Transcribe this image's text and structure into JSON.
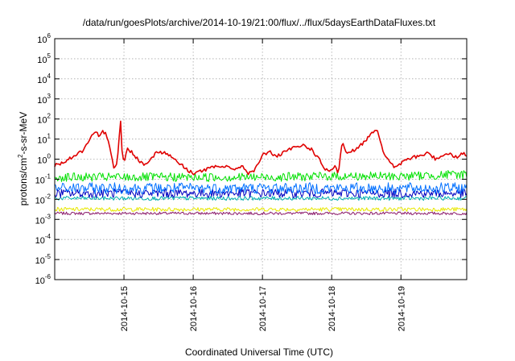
{
  "chart_data": {
    "type": "line",
    "title": "/data/run/goesPlots/archive/2014-10-19/21:00/flux/../flux/5daysEarthDataFluxes.txt",
    "xlabel": "Coordinated Universal Time (UTC)",
    "ylabel_parts": {
      "base": "protons/cm",
      "sup": "2",
      "rest": "-s-sr-MeV"
    },
    "yscale": "log",
    "ylim_exp": [
      -6,
      6
    ],
    "xlim_days": [
      14.0,
      19.95
    ],
    "grid": true,
    "x_ticks": [
      {
        "label": "2014-10-15",
        "day": 15
      },
      {
        "label": "2014-10-16",
        "day": 16
      },
      {
        "label": "2014-10-17",
        "day": 17
      },
      {
        "label": "2014-10-18",
        "day": 18
      },
      {
        "label": "2014-10-19",
        "day": 19
      }
    ],
    "y_ticks": [
      {
        "base": "10",
        "exp": "6"
      },
      {
        "base": "10",
        "exp": "5"
      },
      {
        "base": "10",
        "exp": "4"
      },
      {
        "base": "10",
        "exp": "3"
      },
      {
        "base": "10",
        "exp": "2"
      },
      {
        "base": "10",
        "exp": "1"
      },
      {
        "base": "10",
        "exp": "0"
      },
      {
        "base": "10",
        "exp": "-1"
      },
      {
        "base": "10",
        "exp": "-2"
      },
      {
        "base": "10",
        "exp": "-3"
      },
      {
        "base": "10",
        "exp": "-4"
      },
      {
        "base": "10",
        "exp": "-5"
      },
      {
        "base": "10",
        "exp": "-6"
      }
    ],
    "series": [
      {
        "color": "#e00000",
        "x": [
          14.0,
          14.1,
          14.2,
          14.3,
          14.4,
          14.5,
          14.55,
          14.6,
          14.65,
          14.7,
          14.75,
          14.8,
          14.85,
          14.9,
          14.93,
          14.95,
          14.97,
          15.0,
          15.05,
          15.1,
          15.2,
          15.3,
          15.4,
          15.5,
          15.6,
          15.7,
          15.8,
          15.9,
          16.0,
          16.1,
          16.2,
          16.3,
          16.4,
          16.5,
          16.6,
          16.7,
          16.8,
          16.9,
          17.0,
          17.1,
          17.2,
          17.3,
          17.4,
          17.5,
          17.6,
          17.7,
          17.8,
          17.9,
          18.0,
          18.05,
          18.1,
          18.15,
          18.2,
          18.3,
          18.4,
          18.5,
          18.6,
          18.65,
          18.7,
          18.75,
          18.8,
          18.9,
          19.0,
          19.1,
          19.2,
          19.3,
          19.4,
          19.5,
          19.6,
          19.7,
          19.8,
          19.9,
          19.95
        ],
        "y_exp": [
          -0.3,
          -0.2,
          0.0,
          0.2,
          0.4,
          0.9,
          1.2,
          1.3,
          1.1,
          1.4,
          1.2,
          0.6,
          -0.4,
          -0.2,
          1.0,
          2.0,
          0.5,
          -0.2,
          0.5,
          0.4,
          0.0,
          -0.3,
          0.1,
          0.4,
          0.3,
          0.1,
          -0.2,
          -0.5,
          -0.7,
          -0.6,
          -0.5,
          -0.4,
          -0.4,
          -0.3,
          -0.6,
          -0.3,
          -0.7,
          -0.5,
          0.2,
          0.4,
          0.1,
          0.3,
          0.5,
          0.6,
          0.7,
          0.5,
          0.1,
          -0.5,
          -0.6,
          -0.4,
          -0.7,
          0.9,
          0.3,
          0.4,
          0.6,
          1.0,
          1.4,
          1.5,
          1.0,
          0.3,
          0.0,
          -0.4,
          -0.2,
          0.0,
          0.1,
          0.2,
          0.3,
          0.0,
          0.2,
          0.3,
          0.1,
          0.3,
          0.2
        ]
      },
      {
        "color": "#00e000",
        "x": [
          14.0,
          15.0,
          16.0,
          17.0,
          18.0,
          19.0,
          19.5,
          19.95
        ],
        "y_exp": [
          -0.9,
          -0.9,
          -0.9,
          -0.9,
          -0.85,
          -0.85,
          -0.8,
          -0.75
        ],
        "noise": 0.22
      },
      {
        "color": "#0070ff",
        "x": [
          14.0,
          15.0,
          16.0,
          17.0,
          18.0,
          19.0,
          19.95
        ],
        "y_exp": [
          -1.45,
          -1.45,
          -1.45,
          -1.45,
          -1.45,
          -1.45,
          -1.45
        ],
        "noise": 0.28
      },
      {
        "color": "#0000c0",
        "x": [
          14.0,
          15.0,
          16.0,
          17.0,
          18.0,
          19.0,
          19.95
        ],
        "y_exp": [
          -1.7,
          -1.7,
          -1.7,
          -1.7,
          -1.7,
          -1.7,
          -1.7
        ],
        "noise": 0.22
      },
      {
        "color": "#00b0b0",
        "x": [
          14.0,
          15.0,
          16.0,
          17.0,
          18.0,
          19.0,
          19.95
        ],
        "y_exp": [
          -1.95,
          -1.95,
          -1.95,
          -1.95,
          -1.95,
          -1.95,
          -1.95
        ],
        "noise": 0.1
      },
      {
        "color": "#e8e800",
        "x": [
          14.0,
          15.0,
          16.0,
          17.0,
          18.0,
          19.0,
          19.95
        ],
        "y_exp": [
          -2.5,
          -2.5,
          -2.5,
          -2.5,
          -2.5,
          -2.5,
          -2.5
        ],
        "noise": 0.1
      },
      {
        "color": "#8b1a6b",
        "x": [
          14.0,
          15.0,
          16.0,
          17.0,
          18.0,
          19.0,
          19.95
        ],
        "y_exp": [
          -2.7,
          -2.7,
          -2.7,
          -2.7,
          -2.7,
          -2.7,
          -2.7
        ],
        "noise": 0.07
      }
    ]
  }
}
